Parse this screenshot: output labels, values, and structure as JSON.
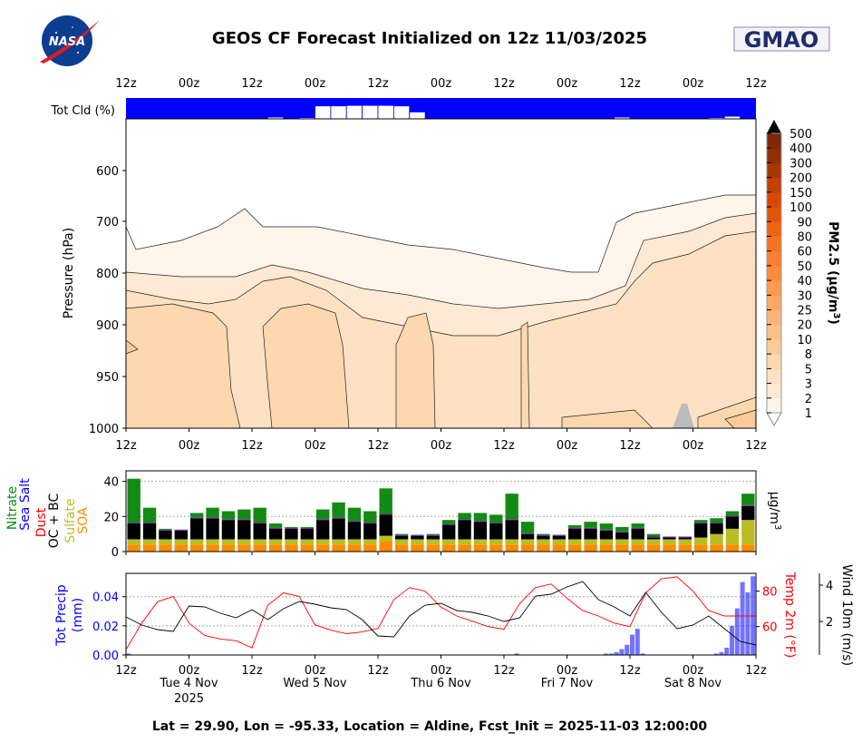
{
  "header": {
    "title": "GEOS CF Forecast Initialized on 12z 11/03/2025",
    "left_logo": "NASA",
    "right_logo": "GMAO"
  },
  "footer": "Lat = 29.90, Lon = -95.33, Location = Aldine, Fcst_Init = 2025-11-03 12:00:00",
  "time_axis": {
    "hours_span": [
      0,
      120
    ],
    "tick_labels": [
      "12z",
      "00z",
      "12z",
      "00z",
      "12z",
      "00z",
      "12z",
      "00z",
      "12z",
      "00z",
      "12z"
    ],
    "day_labels": [
      {
        "hour": 12,
        "line1": "Tue 4 Nov",
        "line2": "2025"
      },
      {
        "hour": 36,
        "line1": "Wed 5 Nov",
        "line2": ""
      },
      {
        "hour": 60,
        "line1": "Thu 6 Nov",
        "line2": ""
      },
      {
        "hour": 84,
        "line1": "Fri 7 Nov",
        "line2": ""
      },
      {
        "hour": 108,
        "line1": "Sat 8 Nov",
        "line2": ""
      }
    ]
  },
  "chart_data": [
    {
      "type": "bar",
      "name": "total-cloud",
      "ylabel": "Tot Cld (%)",
      "x_hours_step": 3,
      "values": [
        98,
        100,
        100,
        100,
        100,
        100,
        100,
        99,
        97,
        90,
        98,
        93,
        25,
        25,
        22,
        22,
        22,
        25,
        60,
        98,
        100,
        100,
        100,
        100,
        100,
        100,
        100,
        98,
        100,
        100,
        98,
        90,
        100,
        100,
        100,
        100,
        100,
        93,
        85,
        100
      ],
      "colors": {
        "cloud": "#0000ff",
        "clear": "#ffffff"
      }
    },
    {
      "type": "heatmap",
      "name": "pm25-curtain",
      "ylabel": "Pressure (hPa)",
      "ytick_labels": [
        "600",
        "700",
        "800",
        "900",
        "950",
        "1000"
      ],
      "colorbar_label": "PM2.5 (μg/m",
      "colorbar_label_sup": "3",
      "colorbar_label_close": ")",
      "levels": [
        "1",
        "2",
        "3",
        "5",
        "8",
        "10",
        "20",
        "25",
        "30",
        "40",
        "50",
        "60",
        "80",
        "90",
        "100",
        "150",
        "200",
        "300",
        "400",
        "500"
      ],
      "colors": [
        "#fff5eb",
        "#fee9d4",
        "#fee1c2",
        "#fdd7ae",
        "#fdcb98",
        "#fdc088",
        "#fdb577",
        "#fda865",
        "#fd9a52",
        "#fd8d3c",
        "#f98030",
        "#f57324",
        "#ee6511",
        "#e25509",
        "#d84801",
        "#c14002",
        "#a93703",
        "#8f3004",
        "#7f2704"
      ],
      "extend_over_color": "#000000",
      "missing_color": "#bbbbbb"
    },
    {
      "type": "bar",
      "stacked": true,
      "name": "pm25-composition",
      "ylabel_unit": "μg/m",
      "ylabel_unit_sup": "3",
      "ylim": [
        0,
        46
      ],
      "yticks": [
        0,
        20,
        40
      ],
      "grid": true,
      "x_hours_step": 3,
      "series": [
        {
          "name": "SOA",
          "color": "#ff8c00",
          "values": [
            4,
            4,
            4,
            4,
            4,
            4,
            4,
            4,
            4,
            4,
            4,
            4,
            4,
            4,
            4,
            4,
            6,
            4,
            4,
            4,
            4,
            4,
            4,
            4,
            4,
            4,
            4,
            4,
            4,
            4,
            4,
            4,
            4,
            4,
            4,
            4,
            4,
            4,
            4,
            4
          ]
        },
        {
          "name": "Sulfate",
          "color": "#bcbd22",
          "values": [
            3,
            3,
            3,
            3,
            3,
            3,
            3,
            3,
            3,
            3,
            3,
            3,
            3,
            3,
            3,
            3,
            3,
            3,
            3,
            3,
            3,
            3,
            3,
            3,
            3,
            3,
            3,
            3,
            3,
            3,
            3,
            3,
            3,
            3,
            3,
            3,
            4,
            6,
            9,
            14
          ]
        },
        {
          "name": "OC + BC",
          "color": "#000000",
          "values": [
            9,
            9,
            5,
            5,
            12,
            12,
            11,
            11,
            9,
            6,
            6,
            6,
            11,
            12,
            10,
            9,
            12,
            2,
            2,
            2,
            8,
            11,
            10,
            9,
            11,
            3,
            2,
            2,
            6,
            6,
            5,
            4,
            6,
            1,
            1,
            1,
            8,
            6,
            7,
            8
          ]
        },
        {
          "name": "Dust",
          "color": "#ff0000",
          "values": [
            0.2,
            0.2,
            0.2,
            0.2,
            0.2,
            0.2,
            0.2,
            0.2,
            0.2,
            0.2,
            0.2,
            0.2,
            0.2,
            0.2,
            0.2,
            0.2,
            0.2,
            0.2,
            0.2,
            0.2,
            0.2,
            0.2,
            0.2,
            0.2,
            0.2,
            0.2,
            0.2,
            0.2,
            0.2,
            0.2,
            0.2,
            0.2,
            0.2,
            0.2,
            0.2,
            0.2,
            0.2,
            0.2,
            0.2,
            0.2
          ]
        },
        {
          "name": "Sea Salt",
          "color": "#0000ff",
          "values": [
            0.3,
            0.3,
            0.3,
            0.3,
            0.3,
            0.3,
            0.3,
            0.3,
            0.3,
            0.3,
            0.3,
            0.3,
            0.3,
            0.3,
            0.3,
            0.3,
            0.3,
            0.3,
            0.3,
            0.3,
            0.3,
            0.3,
            0.3,
            0.3,
            0.3,
            0.3,
            0.3,
            0.3,
            0.3,
            0.3,
            0.3,
            0.3,
            0.3,
            0.3,
            0.3,
            0.3,
            0.3,
            0.3,
            0.3,
            0.3
          ]
        },
        {
          "name": "Nitrate",
          "color": "#138a13",
          "values": [
            25,
            8.5,
            0.5,
            0,
            2.5,
            5.5,
            4.5,
            5.5,
            8.5,
            2.5,
            0.5,
            0.5,
            5.5,
            8.5,
            7.5,
            6.5,
            14.5,
            0.5,
            0,
            0.5,
            2.5,
            3.5,
            4.5,
            4.5,
            14.5,
            6.5,
            0.5,
            0,
            1.5,
            3.5,
            3.5,
            2.5,
            2.5,
            1.5,
            0,
            0,
            1.5,
            2.5,
            2.5,
            6.5
          ]
        }
      ]
    },
    {
      "type": "line",
      "name": "meteorology",
      "precip": {
        "label": "Tot Precip",
        "unit": "(mm)",
        "color": "#0000ff",
        "ylim": [
          0,
          0.056
        ],
        "yticks": [
          "0.00",
          "0.02",
          "0.04"
        ],
        "hourly_bars": [
          [
            0,
            0.001
          ],
          [
            74,
            0.001
          ],
          [
            91,
            0.001
          ],
          [
            92,
            0.001
          ],
          [
            93,
            0.002
          ],
          [
            94,
            0.004
          ],
          [
            95,
            0.007
          ],
          [
            96,
            0.014
          ],
          [
            97,
            0.018
          ],
          [
            98,
            0.001
          ],
          [
            112,
            0.001
          ],
          [
            113,
            0.002
          ],
          [
            114,
            0.005
          ],
          [
            115,
            0.02
          ],
          [
            116,
            0.032
          ],
          [
            117,
            0.05
          ],
          [
            118,
            0.043
          ],
          [
            119,
            0.054
          ]
        ]
      },
      "temperature": {
        "label": "Temp 2m (",
        "unit": "°F)",
        "color": "#ff0000",
        "ylim": [
          44,
          90
        ],
        "yticks": [
          "60",
          "80"
        ],
        "x_hours_step": 3,
        "values": [
          47,
          62,
          74,
          77,
          62,
          55,
          53,
          52,
          48,
          72,
          79,
          77,
          61,
          58,
          56,
          57,
          59,
          75,
          82,
          80,
          71,
          66,
          63,
          60,
          58.5,
          73,
          82,
          84,
          76,
          69,
          66,
          62,
          60,
          79,
          87,
          88,
          80,
          69,
          66,
          66,
          66
        ]
      },
      "wind": {
        "label": "Wind 10m (m/s)",
        "color": "#000000",
        "ylim": [
          0.15,
          4.65
        ],
        "yticks": [
          "2",
          "4"
        ],
        "x_hours_step": 3,
        "values": [
          2.25,
          1.8,
          1.55,
          1.45,
          2.85,
          2.8,
          2.45,
          2.2,
          2.65,
          2.1,
          2.7,
          3.1,
          2.95,
          2.75,
          2.65,
          2.1,
          1.2,
          1.15,
          2.3,
          2.9,
          3.0,
          2.6,
          2.5,
          2.3,
          2.0,
          2.2,
          3.4,
          3.5,
          3.9,
          4.2,
          3.2,
          2.8,
          2.3,
          3.6,
          2.5,
          1.6,
          1.8,
          2.3,
          1.6,
          0.9,
          0.7
        ]
      },
      "grid": true
    }
  ]
}
